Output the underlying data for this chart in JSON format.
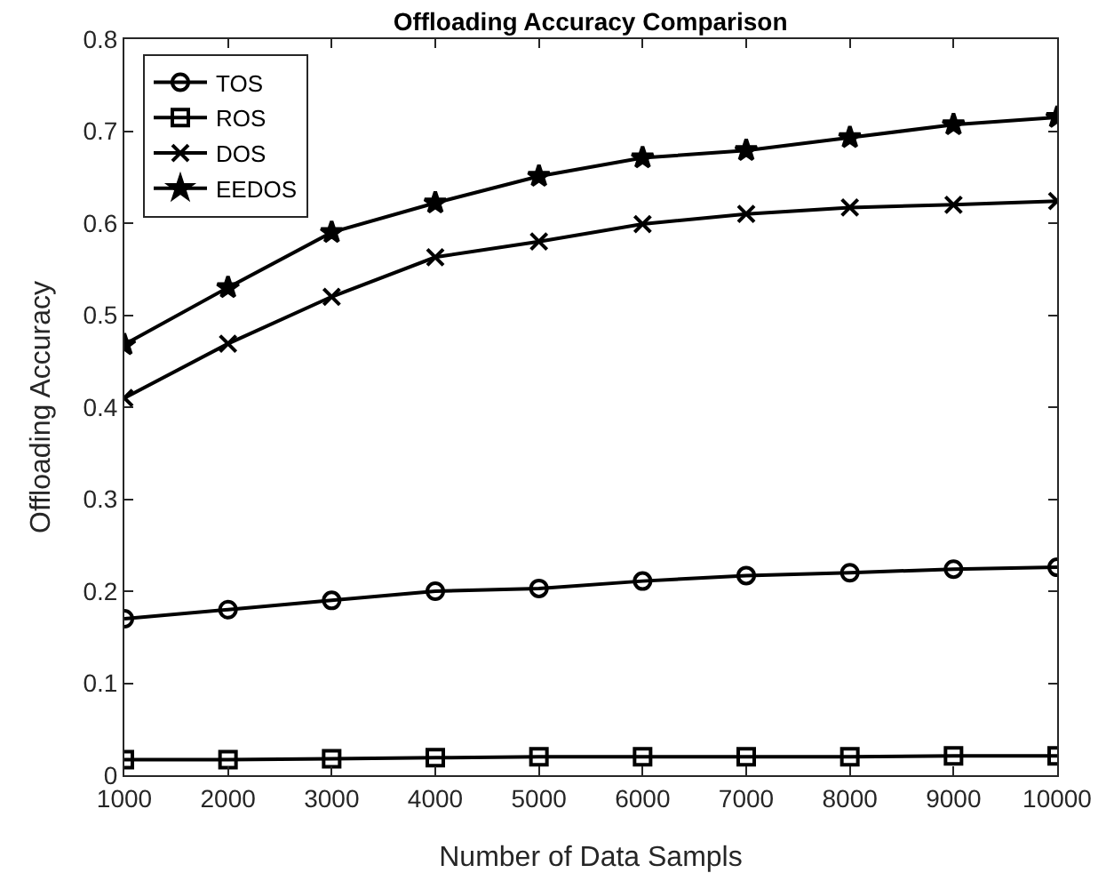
{
  "chart_data": {
    "type": "line",
    "title": "Offloading Accuracy Comparison",
    "xlabel": "Number of Data Sampls",
    "ylabel": "Offloading Accuracy",
    "x": [
      1000,
      2000,
      3000,
      4000,
      5000,
      6000,
      7000,
      8000,
      9000,
      10000
    ],
    "xlim": [
      1000,
      10000
    ],
    "xticks": [
      1000,
      2000,
      3000,
      4000,
      5000,
      6000,
      7000,
      8000,
      9000,
      10000
    ],
    "ylim": [
      0,
      0.8
    ],
    "yticks": [
      0,
      0.1,
      0.2,
      0.3,
      0.4,
      0.5,
      0.6,
      0.7,
      0.8
    ],
    "grid": false,
    "legend": "top left",
    "line_style": "solid",
    "series": [
      {
        "name": "TOS",
        "color": "#000000",
        "marker": "circle",
        "values": [
          0.17,
          0.18,
          0.19,
          0.2,
          0.203,
          0.211,
          0.217,
          0.22,
          0.224,
          0.226
        ]
      },
      {
        "name": "ROS",
        "color": "#000000",
        "marker": "square",
        "values": [
          0.017,
          0.017,
          0.018,
          0.019,
          0.02,
          0.02,
          0.02,
          0.02,
          0.021,
          0.021
        ]
      },
      {
        "name": "DOS",
        "color": "#000000",
        "marker": "cross",
        "values": [
          0.41,
          0.469,
          0.52,
          0.563,
          0.58,
          0.599,
          0.61,
          0.617,
          0.62,
          0.624
        ]
      },
      {
        "name": "EEDOS",
        "color": "#000000",
        "marker": "star",
        "values": [
          0.468,
          0.53,
          0.59,
          0.622,
          0.651,
          0.671,
          0.679,
          0.693,
          0.707,
          0.715
        ]
      }
    ]
  }
}
